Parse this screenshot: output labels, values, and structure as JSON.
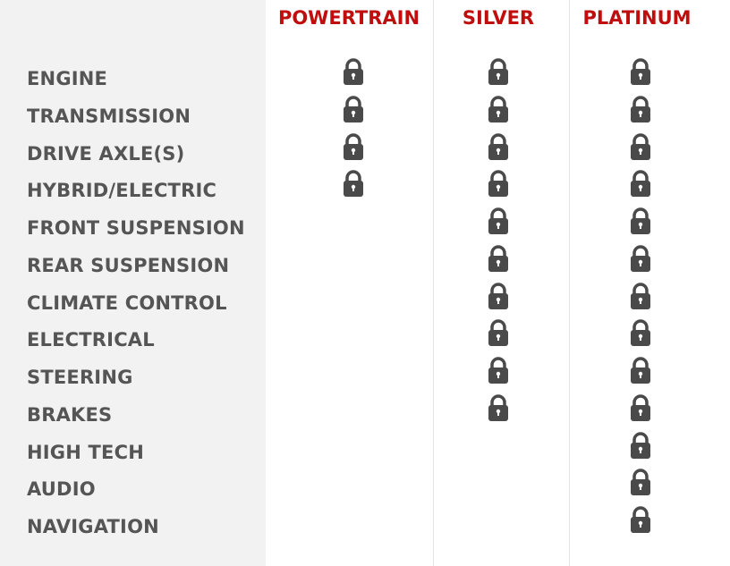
{
  "columns": [
    "POWERTRAIN",
    "SILVER",
    "PLATINUM"
  ],
  "colors": {
    "header": "#c00d0d",
    "label": "#555555",
    "lock": "#4a4a4a"
  },
  "rows": [
    {
      "label": "ENGINE",
      "covered": [
        true,
        true,
        true
      ]
    },
    {
      "label": "TRANSMISSION",
      "covered": [
        true,
        true,
        true
      ]
    },
    {
      "label": "DRIVE AXLE(S)",
      "covered": [
        true,
        true,
        true
      ]
    },
    {
      "label": "HYBRID/ELECTRIC",
      "covered": [
        true,
        true,
        true
      ]
    },
    {
      "label": "FRONT SUSPENSION",
      "covered": [
        false,
        true,
        true
      ]
    },
    {
      "label": "REAR SUSPENSION",
      "covered": [
        false,
        true,
        true
      ]
    },
    {
      "label": "CLIMATE CONTROL",
      "covered": [
        false,
        true,
        true
      ]
    },
    {
      "label": "ELECTRICAL",
      "covered": [
        false,
        true,
        true
      ]
    },
    {
      "label": "STEERING",
      "covered": [
        false,
        true,
        true
      ]
    },
    {
      "label": "BRAKES",
      "covered": [
        false,
        true,
        true
      ]
    },
    {
      "label": "HIGH TECH",
      "covered": [
        false,
        false,
        true
      ]
    },
    {
      "label": "AUDIO",
      "covered": [
        false,
        false,
        true
      ]
    },
    {
      "label": "NAVIGATION",
      "covered": [
        false,
        false,
        true
      ]
    }
  ]
}
